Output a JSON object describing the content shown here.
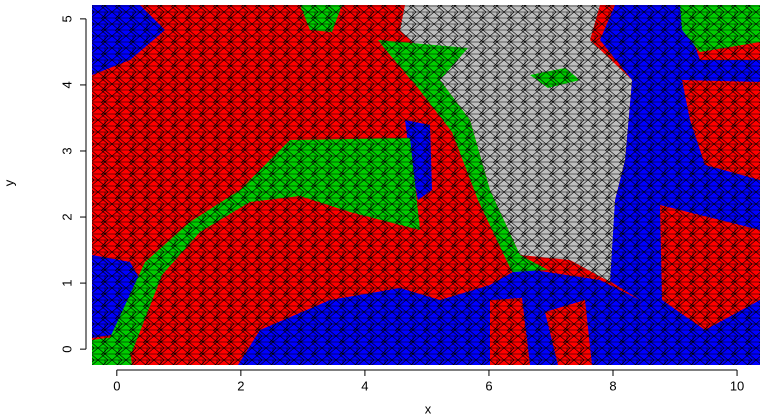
{
  "chart_data": {
    "type": "mesh",
    "xlabel": "x",
    "ylabel": "y",
    "xlim": [
      -0.4,
      10.37
    ],
    "ylim": [
      -0.24,
      5.21
    ],
    "xticks": [
      0,
      2,
      4,
      6,
      8,
      10
    ],
    "yticks": [
      0,
      1,
      2,
      3,
      4,
      5
    ]
  }
}
